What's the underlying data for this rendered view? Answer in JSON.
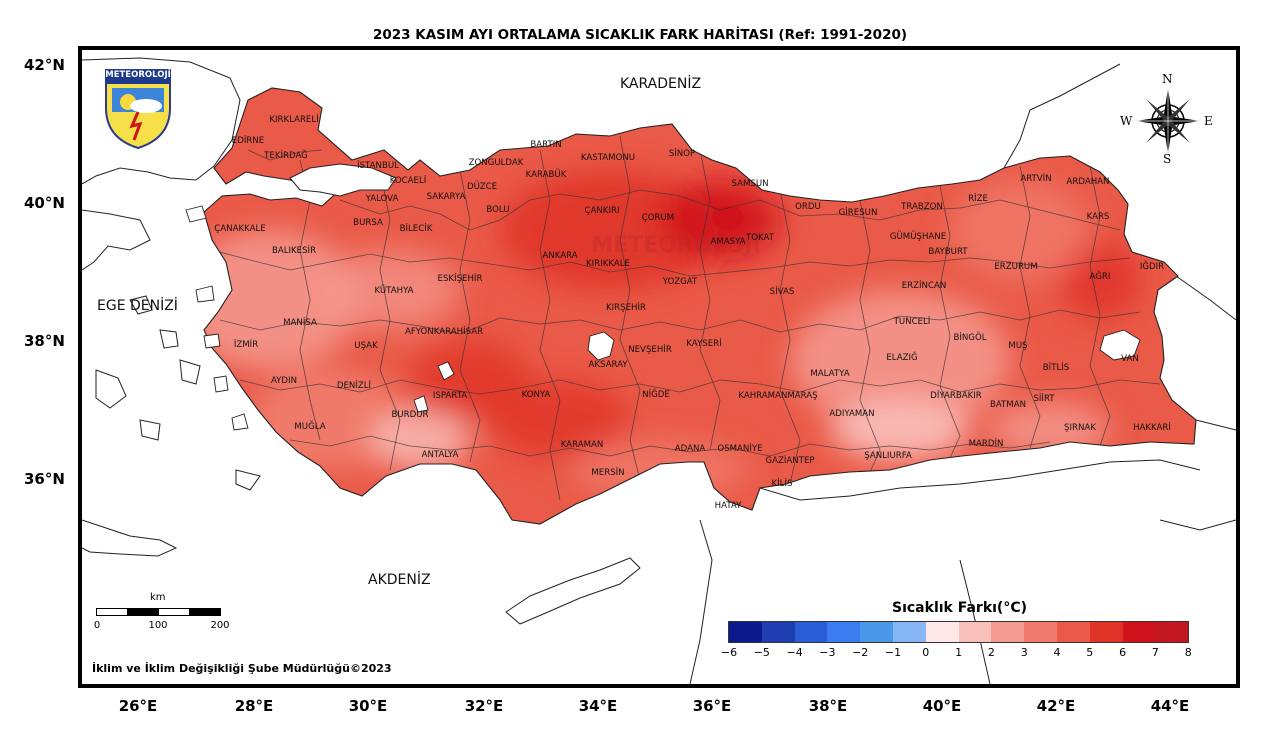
{
  "title": "2023 KASIM AYI ORTALAMA SICAKLIK FARK HARİTASI (Ref: 1991-2020)",
  "logo_text": "METEOROLOJİ",
  "watermark_text": "METEOROLOJİ",
  "latitude_labels": [
    "42°N",
    "40°N",
    "38°N",
    "36°N"
  ],
  "longitude_labels": [
    "26°E",
    "28°E",
    "30°E",
    "32°E",
    "34°E",
    "36°E",
    "38°E",
    "40°E",
    "42°E",
    "44°E"
  ],
  "seas": {
    "black_sea": "KARADENİZ",
    "aegean": "EGE DENİZİ",
    "mediterranean": "AKDENİZ"
  },
  "compass": {
    "n": "N",
    "s": "S",
    "e": "E",
    "w": "W"
  },
  "scale": {
    "unit": "km",
    "ticks": [
      "0",
      "100",
      "200"
    ]
  },
  "legend": {
    "title": "Sıcaklık Farkı(°C)",
    "ticks": [
      "−6",
      "−5",
      "−4",
      "−3",
      "−2",
      "−1",
      "0",
      "1",
      "2",
      "3",
      "4",
      "5",
      "6",
      "7",
      "8"
    ],
    "colors": [
      "#0b1a8c",
      "#1f3fb0",
      "#2a5ed6",
      "#3c7cf0",
      "#4a96e8",
      "#86b6f4",
      "#fde7e7",
      "#f9c0bc",
      "#f59a91",
      "#f07a6b",
      "#ea5a48",
      "#e03328",
      "#d0121a",
      "#c3181f"
    ]
  },
  "credit": "İklim ve İklim Değişikliği Şube Müdürlüğü©2023",
  "cities": [
    {
      "name": "KIRKLARELİ"
    },
    {
      "name": "EDİRNE"
    },
    {
      "name": "TEKİRDAĞ"
    },
    {
      "name": "İSTANBUL"
    },
    {
      "name": "KOCAELİ"
    },
    {
      "name": "YALOVA"
    },
    {
      "name": "SAKARYA"
    },
    {
      "name": "DÜZCE"
    },
    {
      "name": "ZONGULDAK"
    },
    {
      "name": "BARTIN"
    },
    {
      "name": "KARABÜK"
    },
    {
      "name": "KASTAMONU"
    },
    {
      "name": "SİNOP"
    },
    {
      "name": "SAMSUN"
    },
    {
      "name": "AMASYA"
    },
    {
      "name": "ORDU"
    },
    {
      "name": "GİRESUN"
    },
    {
      "name": "TRABZON"
    },
    {
      "name": "RİZE"
    },
    {
      "name": "ARTVİN"
    },
    {
      "name": "ARDAHAN"
    },
    {
      "name": "KARS"
    },
    {
      "name": "ÇANAKKALE"
    },
    {
      "name": "BALIKESİR"
    },
    {
      "name": "BURSA"
    },
    {
      "name": "BİLECİK"
    },
    {
      "name": "BOLU"
    },
    {
      "name": "ÇANKIRI"
    },
    {
      "name": "ÇORUM"
    },
    {
      "name": "TOKAT"
    },
    {
      "name": "GÜMÜŞHANE"
    },
    {
      "name": "BAYBURT"
    },
    {
      "name": "ERZURUM"
    },
    {
      "name": "AĞRI"
    },
    {
      "name": "IĞDIR"
    },
    {
      "name": "ESKİŞEHİR"
    },
    {
      "name": "ANKARA"
    },
    {
      "name": "KIRIKKALE"
    },
    {
      "name": "YOZGAT"
    },
    {
      "name": "SİVAS"
    },
    {
      "name": "ERZİNCAN"
    },
    {
      "name": "KÜTAHYA"
    },
    {
      "name": "MANİSA"
    },
    {
      "name": "İZMİR"
    },
    {
      "name": "UŞAK"
    },
    {
      "name": "AFYONKARAHİSAR"
    },
    {
      "name": "KIRŞEHİR"
    },
    {
      "name": "NEVŞEHİR"
    },
    {
      "name": "KAYSERİ"
    },
    {
      "name": "TUNCELİ"
    },
    {
      "name": "BİNGÖL"
    },
    {
      "name": "MUŞ"
    },
    {
      "name": "ELAZIĞ"
    },
    {
      "name": "BİTLİS"
    },
    {
      "name": "VAN"
    },
    {
      "name": "AYDIN"
    },
    {
      "name": "DENİZLİ"
    },
    {
      "name": "ISPARTA"
    },
    {
      "name": "KONYA"
    },
    {
      "name": "AKSARAY"
    },
    {
      "name": "NİĞDE"
    },
    {
      "name": "MALATYA"
    },
    {
      "name": "KAHRAMANMARAŞ"
    },
    {
      "name": "ADIYAMAN"
    },
    {
      "name": "DİYARBAKIR"
    },
    {
      "name": "BATMAN"
    },
    {
      "name": "SİİRT"
    },
    {
      "name": "ŞIRNAK"
    },
    {
      "name": "HAKKARİ"
    },
    {
      "name": "MUĞLA"
    },
    {
      "name": "BURDUR"
    },
    {
      "name": "ANTALYA"
    },
    {
      "name": "KARAMAN"
    },
    {
      "name": "MERSİN"
    },
    {
      "name": "ADANA"
    },
    {
      "name": "OSMANİYE"
    },
    {
      "name": "GAZİANTEP"
    },
    {
      "name": "ŞANLIURFA"
    },
    {
      "name": "MARDİN"
    },
    {
      "name": "KİLİS"
    },
    {
      "name": "HATAY"
    }
  ]
}
